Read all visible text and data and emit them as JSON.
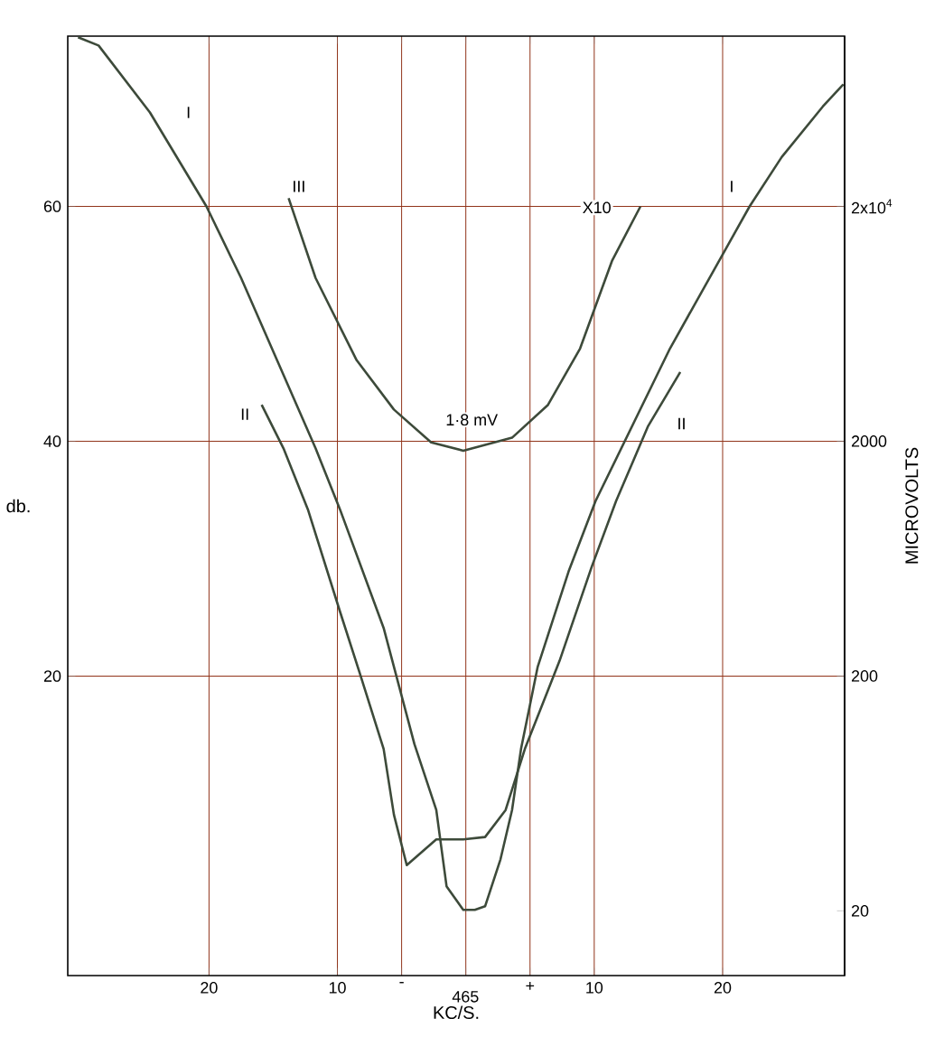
{
  "chart_data": {
    "type": "line",
    "xlabel": "KC/S.",
    "ylabel": "db.",
    "y2label": "MICROVOLTS",
    "xlim": [
      -31,
      29.5
    ],
    "ylim": [
      -5.5,
      74.5
    ],
    "y2lim": [
      10.6,
      106200
    ],
    "log": "y2",
    "xticks": [
      {
        "value": -20,
        "label": "20"
      },
      {
        "value": -10,
        "label": "10"
      },
      {
        "value": -5,
        "label": "-"
      },
      {
        "value": 0,
        "label": null
      },
      {
        "value": 5,
        "label": "+"
      },
      {
        "value": 10,
        "label": "10"
      },
      {
        "value": 20,
        "label": "20"
      }
    ],
    "yticks": [
      20,
      40,
      60
    ],
    "y2ticks": [
      20,
      200,
      2000,
      {
        "value": 20000,
        "label": "2x10$^{4}$"
      }
    ],
    "grid": true,
    "series": [
      {
        "color": "#3d4a3a",
        "x": [
          -30.2,
          -28.6,
          -24.6,
          -20.2,
          -17.5,
          -14.7,
          -11.7,
          -9.8,
          -6.4,
          -4.0,
          -2.3,
          -1.5,
          -0.2,
          0.7,
          1.5,
          2.7,
          3.6,
          4.3,
          5.6,
          8.0,
          10.1,
          15.9,
          22.1,
          24.6,
          27.8,
          29.4
        ],
        "values": [
          74.4,
          73.7,
          68.0,
          60.0,
          53.9,
          46.9,
          39.4,
          34.2,
          24.1,
          14.2,
          8.6,
          2.1,
          0.1,
          0.1,
          0.4,
          4.4,
          8.6,
          13.8,
          20.8,
          28.9,
          34.9,
          47.9,
          60.0,
          64.2,
          68.5,
          70.4
        ]
      },
      {
        "color": "#3d4a3a",
        "x": [
          -15.9,
          -14.2,
          -12.3,
          -9.8,
          -8.3,
          -6.4,
          -5.6,
          -4.6,
          -2.3,
          -0.2,
          1.5,
          3.1,
          4.6,
          7.3,
          9.8,
          11.7,
          14.2,
          16.7
        ],
        "values": [
          43.1,
          39.4,
          34.2,
          25.5,
          20.4,
          13.8,
          8.2,
          3.9,
          6.1,
          6.1,
          6.3,
          8.6,
          13.8,
          21.3,
          29.3,
          34.9,
          41.3,
          45.9
        ]
      },
      {
        "color": "#3d4a3a",
        "x": [
          -13.8,
          -11.7,
          -8.5,
          -5.6,
          -2.7,
          -0.2,
          3.6,
          6.4,
          8.9,
          11.4,
          13.6
        ],
        "values": [
          60.7,
          53.9,
          46.9,
          42.7,
          39.9,
          39.2,
          40.3,
          43.1,
          47.9,
          55.4,
          60.0
        ]
      }
    ],
    "annotations": [
      {
        "text": "I",
        "x": -21.6,
        "y": 68.0
      },
      {
        "text": "III",
        "x": -13.0,
        "y": 61.7
      },
      {
        "text": "X10",
        "x": 10.2,
        "y": 59.9
      },
      {
        "text": "I",
        "x": 20.7,
        "y": 61.7
      },
      {
        "text": "II",
        "x": -17.2,
        "y": 42.3
      },
      {
        "text": "II",
        "x": 16.8,
        "y": 41.5
      },
      "465",
      "1·8 mV"
    ]
  }
}
